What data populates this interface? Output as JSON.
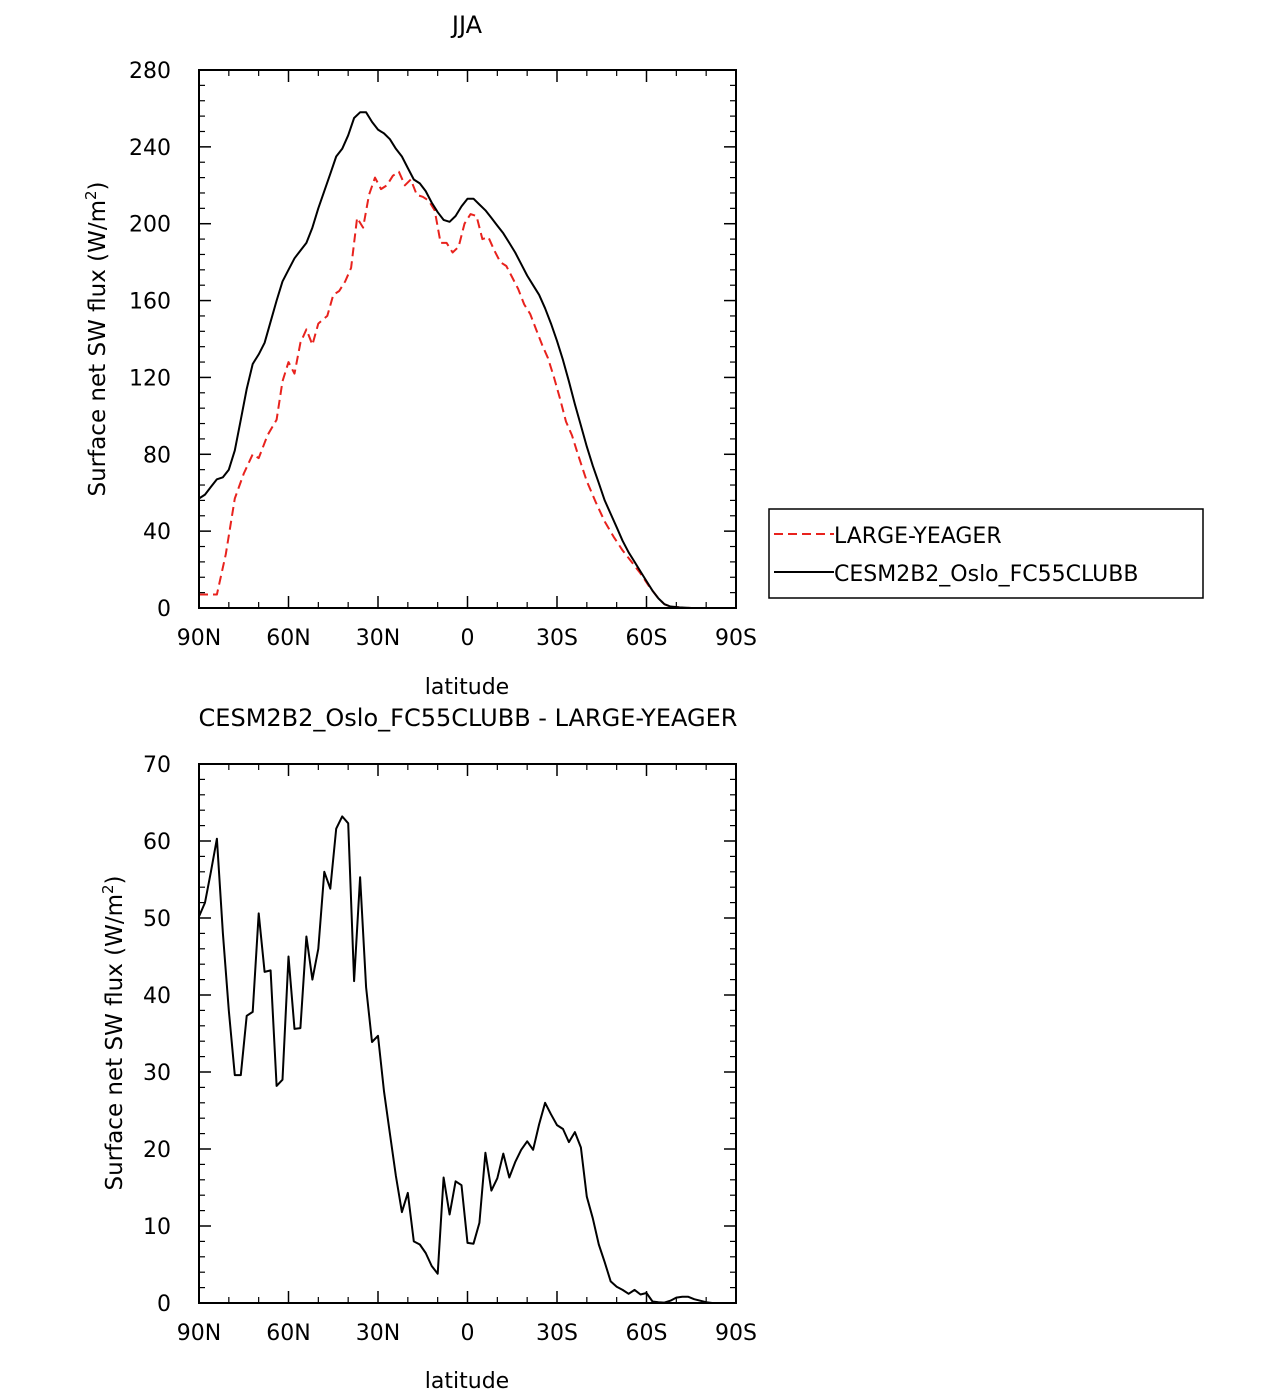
{
  "chart_data": [
    {
      "type": "line",
      "title": "JJA",
      "xlabel": "latitude",
      "ylabel": "Surface net SW flux (W/m",
      "ylabel_sup": "2",
      "ylabel_end": ")",
      "xlim": [
        90,
        -90
      ],
      "ylim": [
        0,
        280
      ],
      "x_ticks": [
        90,
        60,
        30,
        0,
        -30,
        -60,
        -90
      ],
      "x_tick_labels": [
        "90N",
        "60N",
        "30N",
        "0",
        "30S",
        "60S",
        "90S"
      ],
      "y_ticks": [
        0,
        40,
        80,
        120,
        160,
        200,
        240,
        280
      ],
      "y_tick_labels": [
        "0",
        "40",
        "80",
        "120",
        "160",
        "200",
        "240",
        "280"
      ],
      "legend_position": "right",
      "series": [
        {
          "name": "LARGE-YEAGER",
          "color": "#e8221d",
          "dash": "dashed",
          "points": [
            [
              90,
              7
            ],
            [
              87,
              7
            ],
            [
              84,
              7
            ],
            [
              81,
              28
            ],
            [
              78,
              57
            ],
            [
              75,
              70
            ],
            [
              72,
              80
            ],
            [
              70,
              78
            ],
            [
              67,
              90
            ],
            [
              64,
              98
            ],
            [
              62,
              118
            ],
            [
              60,
              128
            ],
            [
              58,
              122
            ],
            [
              56,
              138
            ],
            [
              54,
              145
            ],
            [
              52,
              137
            ],
            [
              50,
              148
            ],
            [
              47,
              152
            ],
            [
              45,
              163
            ],
            [
              43,
              165
            ],
            [
              41,
              170
            ],
            [
              39,
              177
            ],
            [
              37,
              203
            ],
            [
              35,
              198
            ],
            [
              33,
              215
            ],
            [
              31,
              224
            ],
            [
              29,
              218
            ],
            [
              27,
              220
            ],
            [
              25,
              225
            ],
            [
              23,
              227
            ],
            [
              21,
              220
            ],
            [
              19,
              223
            ],
            [
              17,
              215
            ],
            [
              15,
              214
            ],
            [
              13,
              212
            ],
            [
              11,
              207
            ],
            [
              9,
              190
            ],
            [
              7,
              190
            ],
            [
              5,
              185
            ],
            [
              3,
              188
            ],
            [
              1,
              200
            ],
            [
              -1,
              205
            ],
            [
              -3,
              204
            ],
            [
              -5,
              192
            ],
            [
              -7,
              193
            ],
            [
              -9,
              186
            ],
            [
              -11,
              180
            ],
            [
              -13,
              178
            ],
            [
              -15,
              172
            ],
            [
              -17,
              166
            ],
            [
              -19,
              158
            ],
            [
              -21,
              153
            ],
            [
              -23,
              145
            ],
            [
              -25,
              137
            ],
            [
              -27,
              130
            ],
            [
              -29,
              120
            ],
            [
              -31,
              109
            ],
            [
              -33,
              97
            ],
            [
              -35,
              90
            ],
            [
              -37,
              80
            ],
            [
              -40,
              66
            ],
            [
              -43,
              55
            ],
            [
              -46,
              45
            ],
            [
              -49,
              37
            ],
            [
              -52,
              30
            ],
            [
              -55,
              24
            ],
            [
              -58,
              18
            ],
            [
              -61,
              11
            ],
            [
              -64,
              5
            ],
            [
              -66,
              2
            ],
            [
              -68,
              0.8
            ],
            [
              -71,
              0.3
            ],
            [
              -75,
              0
            ],
            [
              -80,
              0
            ],
            [
              -85,
              0
            ],
            [
              -90,
              0
            ]
          ]
        },
        {
          "name": "CESM2B2_Oslo_FC55CLUBB",
          "color": "#000000",
          "dash": "solid",
          "points": [
            [
              90,
              57
            ],
            [
              88,
              59
            ],
            [
              86,
              63
            ],
            [
              84,
              67
            ],
            [
              82,
              68
            ],
            [
              80,
              72
            ],
            [
              78,
              82
            ],
            [
              76,
              98
            ],
            [
              74,
              114
            ],
            [
              72,
              127
            ],
            [
              70,
              132
            ],
            [
              68,
              138
            ],
            [
              66,
              149
            ],
            [
              64,
              160
            ],
            [
              62,
              170
            ],
            [
              60,
              176
            ],
            [
              58,
              182
            ],
            [
              56,
              186
            ],
            [
              54,
              190
            ],
            [
              52,
              198
            ],
            [
              50,
              208
            ],
            [
              48,
              217
            ],
            [
              46,
              226
            ],
            [
              44,
              235
            ],
            [
              42,
              239
            ],
            [
              40,
              246
            ],
            [
              38,
              255
            ],
            [
              36,
              258
            ],
            [
              34,
              258
            ],
            [
              32,
              253
            ],
            [
              30,
              249
            ],
            [
              28,
              247
            ],
            [
              26,
              244
            ],
            [
              24,
              239
            ],
            [
              22,
              235
            ],
            [
              20,
              229
            ],
            [
              18,
              223
            ],
            [
              16,
              221
            ],
            [
              14,
              217
            ],
            [
              12,
              211
            ],
            [
              10,
              206
            ],
            [
              8,
              202
            ],
            [
              6,
              201
            ],
            [
              4,
              204
            ],
            [
              2,
              209
            ],
            [
              0,
              213
            ],
            [
              -2,
              213
            ],
            [
              -4,
              210
            ],
            [
              -6,
              207
            ],
            [
              -8,
              203
            ],
            [
              -10,
              199
            ],
            [
              -12,
              195
            ],
            [
              -14,
              190
            ],
            [
              -16,
              185
            ],
            [
              -18,
              179
            ],
            [
              -20,
              173
            ],
            [
              -22,
              168
            ],
            [
              -24,
              163
            ],
            [
              -26,
              156
            ],
            [
              -28,
              148
            ],
            [
              -30,
              139
            ],
            [
              -32,
              129
            ],
            [
              -34,
              118
            ],
            [
              -36,
              106
            ],
            [
              -38,
              95
            ],
            [
              -40,
              84
            ],
            [
              -42,
              74
            ],
            [
              -44,
              65
            ],
            [
              -46,
              56
            ],
            [
              -48,
              49
            ],
            [
              -50,
              42
            ],
            [
              -52,
              35
            ],
            [
              -54,
              29
            ],
            [
              -56,
              24
            ],
            [
              -58,
              19
            ],
            [
              -60,
              14
            ],
            [
              -62,
              9
            ],
            [
              -64,
              5
            ],
            [
              -66,
              2
            ],
            [
              -68,
              0.8
            ],
            [
              -71,
              0.3
            ],
            [
              -75,
              0
            ],
            [
              -80,
              0
            ],
            [
              -85,
              0
            ],
            [
              -90,
              0
            ]
          ]
        }
      ]
    },
    {
      "type": "line",
      "title": "CESM2B2_Oslo_FC55CLUBB - LARGE-YEAGER",
      "xlabel": "latitude",
      "ylabel": "Surface net SW flux (W/m",
      "ylabel_sup": "2",
      "ylabel_end": ")",
      "xlim": [
        90,
        -90
      ],
      "ylim": [
        0,
        70
      ],
      "x_ticks": [
        90,
        60,
        30,
        0,
        -30,
        -60,
        -90
      ],
      "x_tick_labels": [
        "90N",
        "60N",
        "30N",
        "0",
        "30S",
        "60S",
        "90S"
      ],
      "y_ticks": [
        0,
        10,
        20,
        30,
        40,
        50,
        60,
        70
      ],
      "y_tick_labels": [
        "0",
        "10",
        "20",
        "30",
        "40",
        "50",
        "60",
        "70"
      ],
      "series": [
        {
          "name": "CESM2B2_Oslo_FC55CLUBB - LARGE-YEAGER",
          "color": "#000000",
          "dash": "solid",
          "points": [
            [
              90,
              50.2
            ],
            [
              88,
              52
            ],
            [
              86,
              56
            ],
            [
              84,
              60.3
            ],
            [
              82,
              48
            ],
            [
              80,
              38
            ],
            [
              78,
              29.6
            ],
            [
              76,
              29.6
            ],
            [
              74,
              37.3
            ],
            [
              72,
              37.8
            ],
            [
              70,
              50.6
            ],
            [
              68,
              43
            ],
            [
              66,
              43.2
            ],
            [
              64,
              28.2
            ],
            [
              62,
              29
            ],
            [
              60,
              45
            ],
            [
              58,
              35.6
            ],
            [
              56,
              35.7
            ],
            [
              54,
              47.6
            ],
            [
              52,
              42
            ],
            [
              50,
              46
            ],
            [
              48,
              56
            ],
            [
              46,
              53.8
            ],
            [
              44,
              61.6
            ],
            [
              42,
              63.2
            ],
            [
              40,
              62.3
            ],
            [
              38,
              41.8
            ],
            [
              36,
              55.3
            ],
            [
              34,
              41
            ],
            [
              32,
              33.9
            ],
            [
              30,
              34.7
            ],
            [
              28,
              27.5
            ],
            [
              26,
              22
            ],
            [
              24,
              16.5
            ],
            [
              22,
              11.8
            ],
            [
              20,
              14.3
            ],
            [
              18,
              8
            ],
            [
              16,
              7.6
            ],
            [
              14,
              6.5
            ],
            [
              12,
              4.8
            ],
            [
              10,
              3.8
            ],
            [
              8,
              16.3
            ],
            [
              6,
              11.5
            ],
            [
              4,
              15.8
            ],
            [
              2,
              15.3
            ],
            [
              0,
              7.8
            ],
            [
              -2,
              7.7
            ],
            [
              -4,
              10.4
            ],
            [
              -6,
              19.5
            ],
            [
              -8,
              14.6
            ],
            [
              -10,
              16.2
            ],
            [
              -12,
              19.4
            ],
            [
              -14,
              16.3
            ],
            [
              -16,
              18.3
            ],
            [
              -18,
              19.9
            ],
            [
              -20,
              21
            ],
            [
              -22,
              19.9
            ],
            [
              -24,
              23.2
            ],
            [
              -26,
              26
            ],
            [
              -28,
              24.5
            ],
            [
              -30,
              23.1
            ],
            [
              -32,
              22.6
            ],
            [
              -34,
              20.9
            ],
            [
              -36,
              22.2
            ],
            [
              -38,
              20.2
            ],
            [
              -40,
              13.8
            ],
            [
              -42,
              11
            ],
            [
              -44,
              7.6
            ],
            [
              -46,
              5.3
            ],
            [
              -48,
              2.8
            ],
            [
              -50,
              2.1
            ],
            [
              -52,
              1.7
            ],
            [
              -54,
              1.2
            ],
            [
              -56,
              1.7
            ],
            [
              -58,
              1.1
            ],
            [
              -60,
              1.3
            ],
            [
              -62,
              0.2
            ],
            [
              -64,
              0.1
            ],
            [
              -66,
              0.05
            ],
            [
              -68,
              0.3
            ],
            [
              -70,
              0.7
            ],
            [
              -72,
              0.8
            ],
            [
              -74,
              0.8
            ],
            [
              -76,
              0.5
            ],
            [
              -78,
              0.3
            ],
            [
              -80,
              0.1
            ],
            [
              -82,
              0
            ],
            [
              -86,
              0
            ],
            [
              -90,
              0
            ]
          ]
        }
      ]
    }
  ]
}
